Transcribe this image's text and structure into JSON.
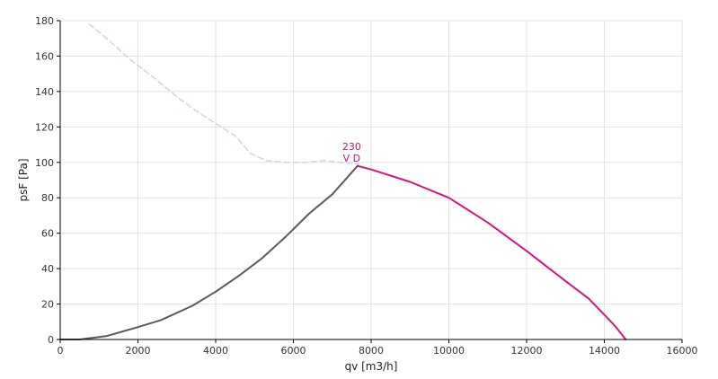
{
  "chart_data": {
    "type": "line",
    "title": "",
    "xlabel": "qv [m3/h]",
    "ylabel": "psF [Pa]",
    "xlim": [
      0,
      16000
    ],
    "ylim": [
      0,
      180
    ],
    "x_ticks": [
      0,
      2000,
      4000,
      6000,
      8000,
      10000,
      12000,
      14000,
      16000
    ],
    "y_ticks": [
      0,
      20,
      40,
      60,
      80,
      100,
      120,
      140,
      160,
      180
    ],
    "x_tick_labels": [
      "0",
      "2000",
      "4000",
      "6000",
      "8000",
      "10000",
      "12000",
      "14000",
      "16000"
    ],
    "y_tick_labels": [
      "0",
      "20",
      "40",
      "60",
      "80",
      "100",
      "120",
      "140",
      "160",
      "180"
    ],
    "grid": true,
    "legend": "none",
    "annotations": [
      {
        "text": "230",
        "x": 7500,
        "y": 107
      },
      {
        "text": "V D",
        "x": 7500,
        "y": 100.5
      }
    ],
    "series": [
      {
        "style": "dashed",
        "color": "#c9d9e6",
        "x": [
          750,
          1300,
          1800,
          2400,
          3000,
          3500,
          4000,
          4500,
          4900,
          5300,
          5800,
          6300,
          6800,
          7200,
          7700
        ],
        "y": [
          178,
          168,
          158,
          148,
          137,
          129,
          122,
          115,
          105,
          101,
          100,
          100,
          101,
          100,
          99
        ]
      },
      {
        "style": "solid",
        "color": "#5a5a5a",
        "x": [
          0,
          500,
          1200,
          2000,
          2600,
          3400,
          4000,
          4600,
          5200,
          5800,
          6400,
          7000,
          7650
        ],
        "y": [
          0,
          0,
          2,
          7,
          11,
          19,
          27,
          36,
          46,
          58,
          71,
          82,
          98
        ]
      },
      {
        "style": "solid",
        "color": "#d4157f",
        "x": [
          7650,
          8000,
          9000,
          10000,
          11000,
          12000,
          13000,
          13600,
          14000,
          14300,
          14550
        ],
        "y": [
          98,
          96,
          89,
          80,
          66,
          50,
          33,
          23,
          14,
          7,
          0
        ]
      }
    ]
  }
}
